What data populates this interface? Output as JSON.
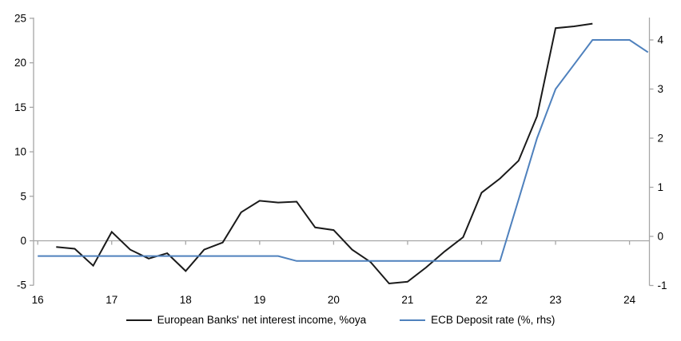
{
  "chart_data": {
    "type": "line",
    "title": "",
    "background": "#ffffff",
    "axis_color": "#a6a6a6",
    "zero_gridline": true,
    "legend_position": "bottom-center",
    "x_axis": {
      "ticks": [
        16,
        17,
        18,
        19,
        20,
        21,
        22,
        23,
        24
      ],
      "range": [
        16,
        24.3
      ]
    },
    "left_axis": {
      "ticks": [
        25,
        20,
        15,
        10,
        5,
        0,
        -5
      ],
      "range": [
        -5,
        25
      ]
    },
    "right_axis": {
      "ticks": [
        4,
        3,
        2,
        1,
        0,
        -1
      ],
      "range": [
        -1,
        4.45
      ]
    },
    "series": [
      {
        "name": "European Banks' net interest income, %oya",
        "axis": "left",
        "color": "#1a1a1a",
        "x": [
          16.25,
          16.5,
          16.75,
          17.0,
          17.25,
          17.5,
          17.75,
          18.0,
          18.25,
          18.5,
          18.75,
          19.0,
          19.25,
          19.5,
          19.75,
          20.0,
          20.25,
          20.5,
          20.75,
          21.0,
          21.25,
          21.5,
          21.75,
          22.0,
          22.25,
          22.5,
          22.75,
          23.0,
          23.25,
          23.5
        ],
        "values": [
          -0.7,
          -0.9,
          -2.8,
          1.0,
          -1.0,
          -2.0,
          -1.4,
          -3.4,
          -1.0,
          -0.2,
          3.2,
          4.5,
          4.3,
          4.4,
          1.5,
          1.2,
          -1.0,
          -2.4,
          -4.8,
          -4.6,
          -3.0,
          -1.2,
          0.4,
          5.4,
          7.0,
          9.0,
          14.0,
          23.9,
          24.1,
          24.4
        ]
      },
      {
        "name": "ECB Deposit rate (%, rhs)",
        "axis": "right",
        "color": "#4f81bd",
        "x": [
          16.0,
          16.25,
          16.5,
          16.75,
          17.0,
          17.25,
          17.5,
          17.75,
          18.0,
          18.25,
          18.5,
          18.75,
          19.0,
          19.25,
          19.5,
          19.75,
          20.0,
          20.25,
          20.5,
          20.75,
          21.0,
          21.25,
          21.5,
          21.75,
          22.0,
          22.25,
          22.5,
          22.75,
          23.0,
          23.25,
          23.5,
          23.75,
          24.0,
          24.25
        ],
        "values": [
          -0.4,
          -0.4,
          -0.4,
          -0.4,
          -0.4,
          -0.4,
          -0.4,
          -0.4,
          -0.4,
          -0.4,
          -0.4,
          -0.4,
          -0.4,
          -0.4,
          -0.5,
          -0.5,
          -0.5,
          -0.5,
          -0.5,
          -0.5,
          -0.5,
          -0.5,
          -0.5,
          -0.5,
          -0.5,
          -0.5,
          0.75,
          2.0,
          3.0,
          3.5,
          4.0,
          4.0,
          4.0,
          3.75
        ]
      }
    ]
  }
}
